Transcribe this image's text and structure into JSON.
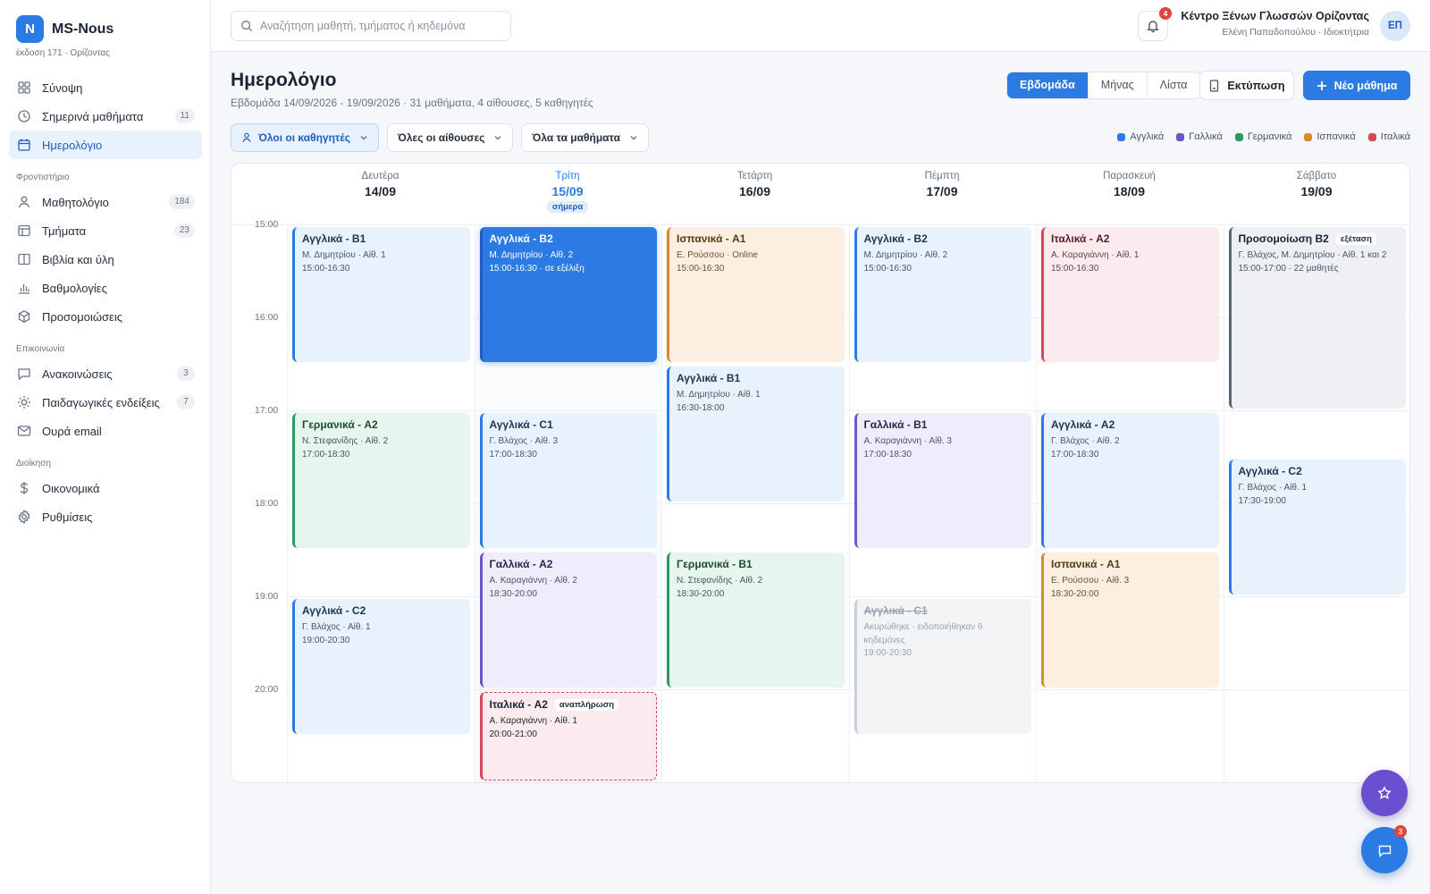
{
  "brand": {
    "logo_letter": "N",
    "name": "MS-Nous",
    "subtitle": "έκδοση 171 · Ορίζοντας"
  },
  "search": {
    "placeholder": "Αναζήτηση μαθητή, τμήματος ή κηδεμόνα",
    "value": ""
  },
  "notifications": {
    "count": "4"
  },
  "org": {
    "name": "Κέντρο Ξένων Γλωσσών Ορίζοντας",
    "user": "Ελένη Παπαδοπούλου · Ιδιοκτήτρια",
    "initials": "ΕΠ"
  },
  "nav": {
    "main": [
      {
        "label": "Σύνοψη",
        "icon": "grid-icon"
      },
      {
        "label": "Σημερινά μαθήματα",
        "icon": "clock-icon",
        "count": "11"
      },
      {
        "label": "Ημερολόγιο",
        "icon": "calendar-icon",
        "active": true
      }
    ],
    "sec1": "Φροντιστήριο",
    "school": [
      {
        "label": "Μαθητολόγιο",
        "icon": "user-icon",
        "count": "184"
      },
      {
        "label": "Τμήματα",
        "icon": "table-icon",
        "count": "23"
      },
      {
        "label": "Βιβλία και ύλη",
        "icon": "book-icon"
      },
      {
        "label": "Βαθμολογίες",
        "icon": "chart-icon"
      },
      {
        "label": "Προσομοιώσεις",
        "icon": "cube-icon"
      }
    ],
    "sec2": "Επικοινωνία",
    "comm": [
      {
        "label": "Ανακοινώσεις",
        "icon": "message-icon",
        "count": "3"
      },
      {
        "label": "Παιδαγωγικές ενδείξεις",
        "icon": "sun-icon",
        "count": "7"
      },
      {
        "label": "Ουρά email",
        "icon": "mail-icon"
      }
    ],
    "sec3": "Διοίκηση",
    "admin": [
      {
        "label": "Οικονομικά",
        "icon": "dollar-icon"
      },
      {
        "label": "Ρυθμίσεις",
        "icon": "gear-icon"
      }
    ]
  },
  "page": {
    "title": "Ημερολόγιο",
    "subtitle": "Εβδομάδα 14/09/2026 - 19/09/2026 · 31 μαθήματα, 4 αίθουσες, 5 καθηγητές"
  },
  "views": {
    "week": "Εβδομάδα",
    "month": "Μήνας",
    "list": "Λίστα",
    "selected": "week"
  },
  "actions": {
    "print": "Εκτύπωση",
    "new": "Νέο μάθημα"
  },
  "filters": {
    "teachers": "Όλοι οι καθηγητές",
    "rooms": "Όλες οι αίθουσες",
    "courses": "Όλα τα μαθήματα"
  },
  "legend": [
    {
      "label": "Αγγλικά",
      "color": "#2c7be5"
    },
    {
      "label": "Γαλλικά",
      "color": "#6e55c9"
    },
    {
      "label": "Γερμανικά",
      "color": "#2e9a62"
    },
    {
      "label": "Ισπανικά",
      "color": "#d98a2b"
    },
    {
      "label": "Ιταλικά",
      "color": "#d44a59"
    }
  ],
  "calendar": {
    "today_label": "σήμερα",
    "days": [
      {
        "name": "Δευτέρα",
        "date": "14/09"
      },
      {
        "name": "Τρίτη",
        "date": "15/09",
        "today": true
      },
      {
        "name": "Τετάρτη",
        "date": "16/09"
      },
      {
        "name": "Πέμπτη",
        "date": "17/09"
      },
      {
        "name": "Παρασκευή",
        "date": "18/09"
      },
      {
        "name": "Σάββατο",
        "date": "19/09"
      }
    ],
    "times": [
      "15:00",
      "16:00",
      "17:00",
      "18:00",
      "19:00",
      "20:00"
    ],
    "events": [
      {
        "day": 0,
        "start": 15.0,
        "end": 16.5,
        "lang": "en",
        "title": "Αγγλικά - B1",
        "meta": "Μ. Δημητρίου · Αίθ. 1",
        "time": "15:00-16:30"
      },
      {
        "day": 0,
        "start": 17.0,
        "end": 18.5,
        "lang": "de",
        "title": "Γερμανικά - A2",
        "meta": "Ν. Στεφανίδης · Αίθ. 2",
        "time": "17:00-18:30"
      },
      {
        "day": 0,
        "start": 19.0,
        "end": 20.5,
        "lang": "en",
        "title": "Αγγλικά - C2",
        "meta": "Γ. Βλάχος · Αίθ. 1",
        "time": "19:00-20:30"
      },
      {
        "day": 1,
        "start": 15.0,
        "end": 16.5,
        "lang": "live",
        "title": "Αγγλικά - B2",
        "meta": "Μ. Δημητρίου · Αίθ. 2",
        "time": "15:00-16:30 · σε εξέλιξη"
      },
      {
        "day": 1,
        "start": 17.0,
        "end": 18.5,
        "lang": "en",
        "title": "Αγγλικά - C1",
        "meta": "Γ. Βλάχος · Αίθ. 3",
        "time": "17:00-18:30"
      },
      {
        "day": 1,
        "start": 18.5,
        "end": 20.0,
        "lang": "fr",
        "title": "Γαλλικά - A2",
        "meta": "Α. Καραγιάννη · Αίθ. 2",
        "time": "18:30-20:00"
      },
      {
        "day": 1,
        "start": 20.0,
        "end": 21.0,
        "lang": "makeup",
        "title": "Ιταλικά - A2",
        "tag": "αναπλήρωση",
        "meta": "Α. Καραγιάννη · Αίθ. 1",
        "time": "20:00-21:00"
      },
      {
        "day": 2,
        "start": 15.0,
        "end": 16.5,
        "lang": "es",
        "title": "Ισπανικά - A1",
        "meta": "Ε. Ρούσσου · Online",
        "time": "15:00-16:30"
      },
      {
        "day": 2,
        "start": 16.5,
        "end": 18.0,
        "lang": "en",
        "title": "Αγγλικά - B1",
        "meta": "Μ. Δημητρίου · Αίθ. 1",
        "time": "16:30-18:00"
      },
      {
        "day": 2,
        "start": 18.5,
        "end": 20.0,
        "lang": "de",
        "title": "Γερμανικά - B1",
        "meta": "Ν. Στεφανίδης · Αίθ. 2",
        "time": "18:30-20:00"
      },
      {
        "day": 3,
        "start": 15.0,
        "end": 16.5,
        "lang": "en",
        "title": "Αγγλικά - B2",
        "meta": "Μ. Δημητρίου · Αίθ. 2",
        "time": "15:00-16:30"
      },
      {
        "day": 3,
        "start": 17.0,
        "end": 18.5,
        "lang": "fr",
        "title": "Γαλλικά - B1",
        "meta": "Α. Καραγιάννη · Αίθ. 3",
        "time": "17:00-18:30"
      },
      {
        "day": 3,
        "start": 19.0,
        "end": 20.5,
        "lang": "cancel",
        "title": "Αγγλικά - C1",
        "meta": "Ακυρώθηκε · ειδοποιήθηκαν 6 κηδεμόνες",
        "time": "19:00-20:30"
      },
      {
        "day": 4,
        "start": 15.0,
        "end": 16.5,
        "lang": "it",
        "title": "Ιταλικά - A2",
        "meta": "Α. Καραγιάννη · Αίθ. 1",
        "time": "15:00-16:30"
      },
      {
        "day": 4,
        "start": 17.0,
        "end": 18.5,
        "lang": "en",
        "title": "Αγγλικά - A2",
        "meta": "Γ. Βλάχος · Αίθ. 2",
        "time": "17:00-18:30"
      },
      {
        "day": 4,
        "start": 18.5,
        "end": 20.0,
        "lang": "es",
        "title": "Ισπανικά - A1",
        "meta": "Ε. Ρούσσου · Αίθ. 3",
        "time": "18:30-20:00"
      },
      {
        "day": 5,
        "start": 15.0,
        "end": 17.0,
        "lang": "exam",
        "title": "Προσομοίωση B2",
        "tag": "εξέταση",
        "meta": "Γ. Βλάχος, Μ. Δημητρίου · Αίθ. 1 και 2",
        "time": "15:00-17:00 · 22 μαθητές"
      },
      {
        "day": 5,
        "start": 17.5,
        "end": 19.0,
        "lang": "en",
        "title": "Αγγλικά - C2",
        "meta": "Γ. Βλάχος · Αίθ. 1",
        "time": "17:30-19:00"
      }
    ]
  },
  "chat": {
    "badge": "3"
  }
}
